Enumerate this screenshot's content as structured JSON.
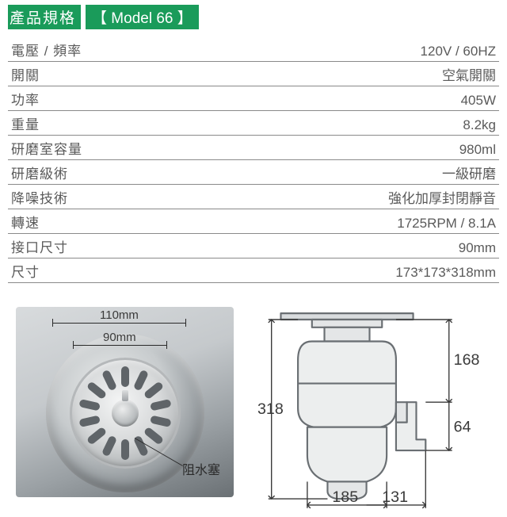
{
  "header": {
    "title": "產品規格",
    "model": "【 Model 66 】"
  },
  "specs": [
    {
      "label": "電壓 / 頻率",
      "value": "120V / 60HZ"
    },
    {
      "label": "開關",
      "value": "空氣開關"
    },
    {
      "label": "功率",
      "value": "405W"
    },
    {
      "label": "重量",
      "value": "8.2kg"
    },
    {
      "label": "研磨室容量",
      "value": "980ml"
    },
    {
      "label": "研磨級術",
      "value": "一級研磨"
    },
    {
      "label": "降噪技術",
      "value": "強化加厚封閉靜音"
    },
    {
      "label": "轉速",
      "value": "1725RPM / 8.1A"
    },
    {
      "label": "接口尺寸",
      "value": "90mm"
    },
    {
      "label": "尺寸",
      "value": "173*173*318mm"
    }
  ],
  "photo_dims": {
    "top": "110mm",
    "mid": "90mm",
    "callout": "阻水塞"
  },
  "drawing_dims": {
    "h_total": "318",
    "h_upper": "168",
    "h_lower": "64",
    "w_body": "185",
    "w_outlet": "131"
  },
  "colors": {
    "brand_green": "#1a9b5a",
    "rule": "#8a8a8a",
    "text": "#5a5a5a",
    "stroke": "#6a6f73"
  }
}
